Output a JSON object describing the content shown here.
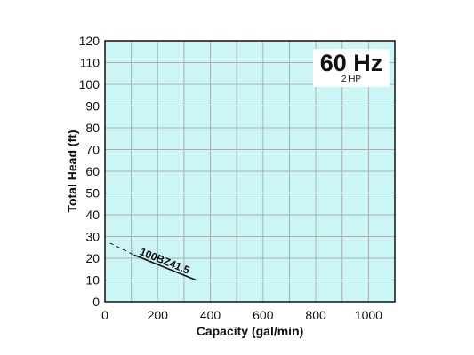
{
  "chart_data": {
    "type": "line",
    "xlabel": "Capacity (gal/min)",
    "ylabel": "Total Head (ft)",
    "xlim": [
      0,
      1100
    ],
    "ylim": [
      0,
      120
    ],
    "x_ticks": [
      0,
      200,
      400,
      600,
      800,
      1000
    ],
    "y_ticks": [
      0,
      10,
      20,
      30,
      40,
      50,
      60,
      70,
      80,
      90,
      100,
      110,
      120
    ],
    "x_grid_step": 100,
    "y_grid_step": 10,
    "grid": true,
    "plot_background": "#ccf5f5",
    "grid_color": "#a9b0b0",
    "frequency_label": "60 Hz",
    "power_label": "2 HP",
    "series": [
      {
        "name": "100BZ41.5",
        "color": "#111111",
        "segments": [
          {
            "style": "dashed",
            "points": [
              [
                20,
                27
              ],
              [
                110,
                21.5
              ]
            ]
          },
          {
            "style": "solid",
            "points": [
              [
                110,
                21.5
              ],
              [
                345,
                10
              ]
            ]
          }
        ]
      }
    ]
  }
}
